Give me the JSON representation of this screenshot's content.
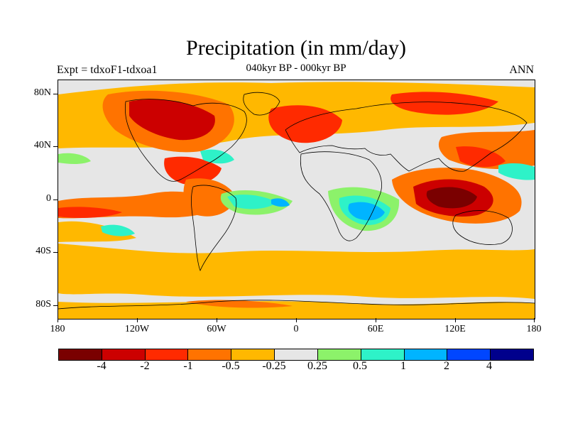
{
  "title": "Precipitation (in mm/day)",
  "experiment": "Expt = tdxoF1-tdxoa1",
  "period": "040kyr BP - 000kyr BP",
  "season": "ANN",
  "lat_ticks": [
    "80N",
    "40N",
    "0",
    "40S",
    "80S"
  ],
  "lon_ticks": [
    "180",
    "120W",
    "60W",
    "0",
    "60E",
    "120E",
    "180"
  ],
  "colorbar": {
    "colors": [
      "#7a0000",
      "#cc0000",
      "#ff2a00",
      "#ff7300",
      "#ffb800",
      "#e6e6e6",
      "#8cf26a",
      "#2ef2c8",
      "#00b4ff",
      "#0046ff",
      "#00008c"
    ],
    "labels": [
      "-4",
      "-2",
      "-1",
      "-0.5",
      "-0.25",
      "0.25",
      "0.5",
      "1",
      "2",
      "4"
    ]
  },
  "colors": {
    "orange": "#ffb800",
    "dark_orange": "#ff7300",
    "red": "#ff2a00",
    "crimson": "#cc0000",
    "dark_red": "#7a0000",
    "no_change": "#e6e6e6",
    "light_green": "#8cf26a",
    "turquoise": "#2ef2c8",
    "sky_blue": "#00b4ff",
    "blue": "#0046ff",
    "navy": "#00008c"
  }
}
